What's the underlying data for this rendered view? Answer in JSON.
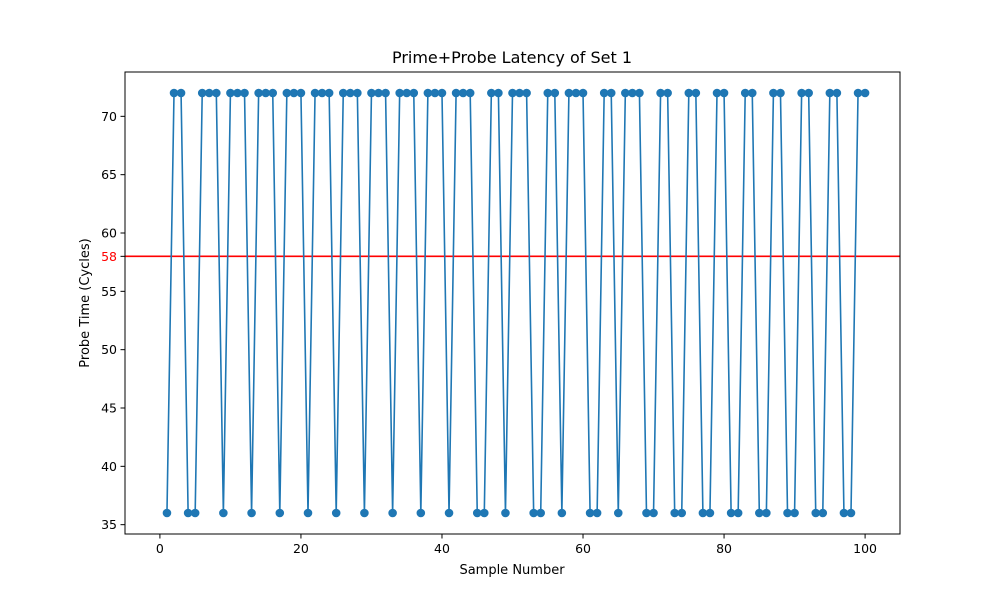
{
  "chart_data": {
    "type": "line",
    "title": "Prime+Probe Latency of Set 1",
    "xlabel": "Sample Number",
    "ylabel": "Probe Time (Cycles)",
    "xlim": [
      -4.95,
      104.95
    ],
    "ylim": [
      34.2,
      73.8
    ],
    "xticks": [
      0,
      20,
      40,
      60,
      80,
      100
    ],
    "yticks": [
      35,
      40,
      45,
      50,
      55,
      60,
      65,
      70
    ],
    "grid": false,
    "series": [
      {
        "color": "#1f77b4",
        "marker": "circle",
        "x": [
          1,
          2,
          3,
          4,
          5,
          6,
          7,
          8,
          9,
          10,
          11,
          12,
          13,
          14,
          15,
          16,
          17,
          18,
          19,
          20,
          21,
          22,
          23,
          24,
          25,
          26,
          27,
          28,
          29,
          30,
          31,
          32,
          33,
          34,
          35,
          36,
          37,
          38,
          39,
          40,
          41,
          42,
          43,
          44,
          45,
          46,
          47,
          48,
          49,
          50,
          51,
          52,
          53,
          54,
          55,
          56,
          57,
          58,
          59,
          60,
          61,
          62,
          63,
          64,
          65,
          66,
          67,
          68,
          69,
          70,
          71,
          72,
          73,
          74,
          75,
          76,
          77,
          78,
          79,
          80,
          81,
          82,
          83,
          84,
          85,
          86,
          87,
          88,
          89,
          90,
          91,
          92,
          93,
          94,
          95,
          96,
          97,
          98,
          99,
          100
        ],
        "y": [
          36,
          72,
          72,
          36,
          36,
          72,
          72,
          72,
          36,
          72,
          72,
          72,
          36,
          72,
          72,
          72,
          36,
          72,
          72,
          72,
          36,
          72,
          72,
          72,
          36,
          72,
          72,
          72,
          36,
          72,
          72,
          72,
          36,
          72,
          72,
          72,
          36,
          72,
          72,
          72,
          36,
          72,
          72,
          72,
          36,
          36,
          72,
          72,
          36,
          72,
          72,
          72,
          36,
          36,
          72,
          72,
          36,
          72,
          72,
          72,
          36,
          36,
          72,
          72,
          36,
          72,
          72,
          72,
          36,
          36,
          72,
          72,
          36,
          36,
          72,
          72,
          36,
          36,
          72,
          72,
          36,
          36,
          72,
          72,
          36,
          36,
          72,
          72,
          36,
          36,
          72,
          72,
          36,
          36,
          72,
          72,
          36,
          36,
          72,
          72
        ]
      }
    ],
    "threshold": {
      "value": 58,
      "label": "58",
      "color": "#ff0000"
    }
  }
}
